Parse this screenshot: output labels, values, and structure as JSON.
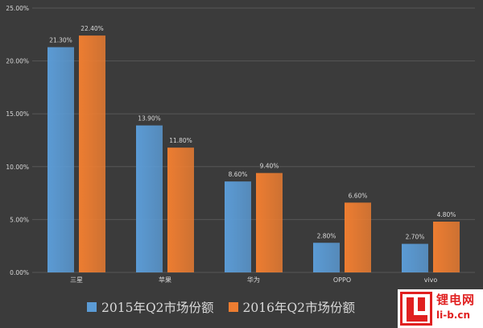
{
  "chart_data": {
    "type": "bar",
    "categories": [
      "三星",
      "苹果",
      "华为",
      "OPPO",
      "vivo"
    ],
    "series": [
      {
        "name": "2015年Q2市场份额",
        "values": [
          21.3,
          13.9,
          8.6,
          2.8,
          2.7
        ],
        "color": "#5b9bd5"
      },
      {
        "name": "2016年Q2市场份额",
        "values": [
          22.4,
          11.8,
          9.4,
          6.6,
          4.8
        ],
        "color": "#ed7d31"
      }
    ],
    "value_labels": [
      [
        "21.30%",
        "13.90%",
        "8.60%",
        "2.80%",
        "2.70%"
      ],
      [
        "22.40%",
        "11.80%",
        "9.40%",
        "6.60%",
        "4.80%"
      ]
    ],
    "y_ticks": [
      "0.00%",
      "5.00%",
      "10.00%",
      "15.00%",
      "20.00%",
      "25.00%"
    ],
    "y_tick_values": [
      0,
      5,
      10,
      15,
      20,
      25
    ],
    "ylim": [
      0,
      25
    ],
    "grid": true,
    "legend_position": "bottom"
  },
  "watermark": {
    "name": "锂电网",
    "url": "li-b.cn"
  },
  "colors": {
    "background": "#3b3b3b",
    "grid": "#575757",
    "text": "#d9d9d9"
  }
}
